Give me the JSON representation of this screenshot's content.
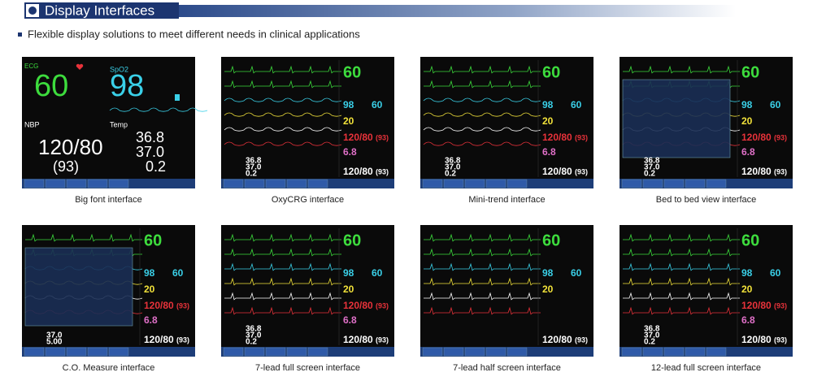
{
  "header": {
    "title": "Display Interfaces",
    "subtitle": "Flexible display solutions to meet different needs in clinical applications"
  },
  "big_font": {
    "ecg_label": "ECG",
    "hr": "60",
    "spo2_label": "SpO2",
    "spo2": "98",
    "nbp_label": "NBP",
    "nbp": "120/80",
    "map": "(93)",
    "temp_label": "Temp",
    "t1": "36.8",
    "t2": "37.0",
    "td": "0.2"
  },
  "panels": [
    {
      "caption": "Big font interface"
    },
    {
      "caption": "OxyCRG interface",
      "readings": {
        "hr": "60",
        "spo2": "98",
        "pr": "60",
        "resp": "20",
        "nbp": "120/80",
        "map": "(93)",
        "co": "6.8",
        "t1": "36.8",
        "t2": "37.0",
        "td": "0.2",
        "nbp2": "120/80",
        "map2": "(93)"
      }
    },
    {
      "caption": "Mini-trend interface",
      "readings": {
        "hr": "60",
        "spo2": "98",
        "pr": "60",
        "resp": "20",
        "nbp": "120/80",
        "map": "(93)",
        "co": "6.8",
        "t1": "36.8",
        "t2": "37.0",
        "td": "0.2",
        "nbp2": "120/80",
        "map2": "(93)"
      }
    },
    {
      "caption": "Bed to bed view interface",
      "readings": {
        "hr": "60",
        "spo2": "98",
        "pr": "60",
        "resp": "20",
        "nbp": "120/80",
        "map": "(93)",
        "co": "6.8",
        "t1": "36.8",
        "t2": "37.0",
        "td": "0.2",
        "nbp2": "120/80",
        "map2": "(93)"
      }
    },
    {
      "caption": "C.O. Measure interface",
      "readings": {
        "hr": "60",
        "spo2": "98",
        "pr": "60",
        "resp": "20",
        "nbp": "120/80",
        "map": "(93)",
        "co": "6.8",
        "t2": "37.0",
        "td": "5.00",
        "nbp2": "120/80",
        "map2": "(93)"
      }
    },
    {
      "caption": "7-lead full screen interface",
      "readings": {
        "hr": "60",
        "spo2": "98",
        "pr": "60",
        "resp": "20",
        "nbp": "120/80",
        "map": "(93)",
        "co": "6.8",
        "t1": "36.8",
        "t2": "37.0",
        "td": "0.2",
        "nbp2": "120/80",
        "map2": "(93)"
      }
    },
    {
      "caption": "7-lead half screen interface",
      "readings": {
        "hr": "60",
        "spo2": "98",
        "pr": "60",
        "resp": "20",
        "nbp2": "120/80",
        "map2": "(93)"
      }
    },
    {
      "caption": "12-lead full screen interface",
      "readings": {
        "hr": "60",
        "spo2": "98",
        "pr": "60",
        "resp": "20",
        "nbp": "120/80",
        "map": "(93)",
        "co": "6.8",
        "t1": "36.8",
        "t2": "37.0",
        "td": "0.2",
        "nbp2": "120/80",
        "map2": "(93)"
      }
    }
  ]
}
